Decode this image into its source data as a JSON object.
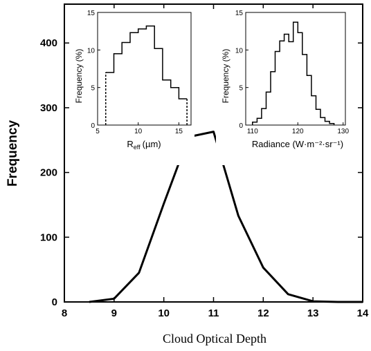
{
  "chart_data": [
    {
      "id": "main",
      "type": "line",
      "xlabel": "Cloud Optical Depth",
      "ylabel": "Frequency",
      "xlim": [
        8,
        14
      ],
      "ylim": [
        0,
        460
      ],
      "xticks": [
        8,
        9,
        10,
        11,
        12,
        13,
        14
      ],
      "yticks": [
        0,
        100,
        200,
        300,
        400
      ],
      "series": [
        {
          "x": [
            8.5,
            9.0,
            9.5,
            10.0,
            10.5,
            11.0,
            11.5,
            12.0,
            12.5,
            13.0,
            13.5,
            14.0
          ],
          "values": [
            0,
            5,
            45,
            152,
            255,
            263,
            133,
            53,
            12,
            1,
            0,
            0
          ]
        }
      ]
    },
    {
      "id": "inset-reff",
      "type": "histogram",
      "xlabel_main": "R",
      "xlabel_sub": "eff",
      "xlabel_unit": "(µm)",
      "ylabel": "Frequency (%)",
      "xlim": [
        5,
        16.5
      ],
      "ylim": [
        0,
        15
      ],
      "xticks": [
        5,
        10,
        15
      ],
      "yticks": [
        0,
        5,
        10,
        15
      ],
      "bin_edges": [
        6,
        7,
        8,
        9,
        10,
        11,
        12,
        13,
        14,
        15,
        16
      ],
      "values": [
        7,
        9.5,
        11,
        12.3,
        12.8,
        13.2,
        10.2,
        6,
        5,
        3.5
      ],
      "dashed_edges": [
        6,
        16
      ]
    },
    {
      "id": "inset-radiance",
      "type": "histogram",
      "xlabel": "Radiance (W·m⁻²·sr⁻¹)",
      "ylabel": "Frequency (%)",
      "xlim": [
        108.5,
        130.5
      ],
      "ylim": [
        0,
        15
      ],
      "xticks": [
        110,
        120,
        130
      ],
      "yticks": [
        0,
        5,
        10,
        15
      ],
      "bin_edges": [
        110,
        111,
        112,
        113,
        114,
        115,
        116,
        117,
        118,
        119,
        120,
        121,
        122,
        123,
        124,
        125,
        126,
        127,
        128
      ],
      "values": [
        0.4,
        0.9,
        2.2,
        4.4,
        7.1,
        9.8,
        11.2,
        12.1,
        11.1,
        13.7,
        12.3,
        9.4,
        6.6,
        3.9,
        2.1,
        1.0,
        0.5,
        0.2
      ]
    }
  ]
}
